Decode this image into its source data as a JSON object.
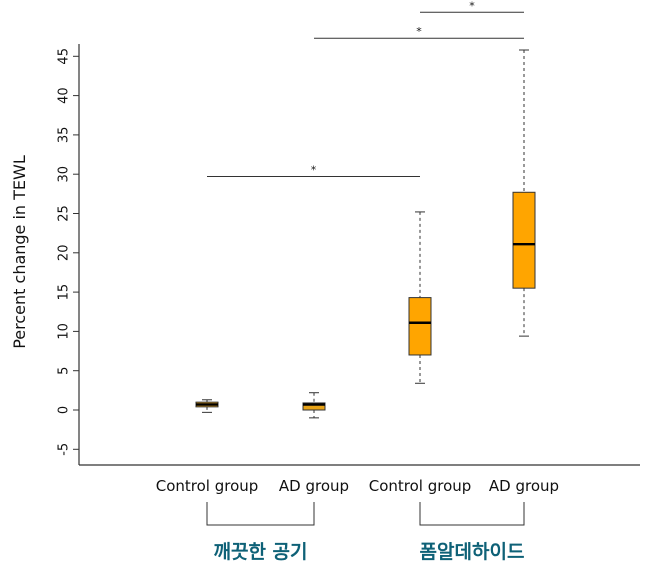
{
  "chart_data": {
    "type": "boxplot",
    "ylabel": "Percent change in TEWL",
    "ylim": [
      -7,
      47
    ],
    "y_ticks": [
      -5,
      0,
      5,
      10,
      15,
      20,
      25,
      30,
      35,
      40,
      45
    ],
    "categories": [
      "Control group",
      "AD group",
      "Control group",
      "AD group"
    ],
    "boxes": [
      {
        "category": "Control group",
        "group": "깨끗한 공기",
        "min": -0.3,
        "q1": 0.4,
        "median": 0.7,
        "q3": 1.0,
        "max": 1.3
      },
      {
        "category": "AD group",
        "group": "깨끗한 공기",
        "min": -1.0,
        "q1": 0.0,
        "median": 0.7,
        "q3": 0.9,
        "max": 2.2
      },
      {
        "category": "Control group",
        "group": "폼알데하이드",
        "min": 3.4,
        "q1": 7.0,
        "median": 11.1,
        "q3": 14.3,
        "max": 25.2
      },
      {
        "category": "AD group",
        "group": "폼알데하이드",
        "min": 9.4,
        "q1": 15.5,
        "median": 21.1,
        "q3": 27.7,
        "max": 45.8
      }
    ],
    "groups": [
      {
        "label": "깨끗한 공기",
        "members": [
          0,
          1
        ]
      },
      {
        "label": "폼알데하이드",
        "members": [
          2,
          3
        ]
      }
    ],
    "significance": [
      {
        "from": 0,
        "to": 2,
        "y": 29.7,
        "label": "*"
      },
      {
        "from": 1,
        "to": 3,
        "y": 47.3,
        "label": "*"
      },
      {
        "from": 2,
        "to": 3,
        "y": 50.6,
        "label": "*"
      }
    ],
    "colors": {
      "clean_box": "#E8A317",
      "formaldehyde_box": "#FFA500",
      "group_label": "#0E6177",
      "line": "#333333"
    }
  }
}
